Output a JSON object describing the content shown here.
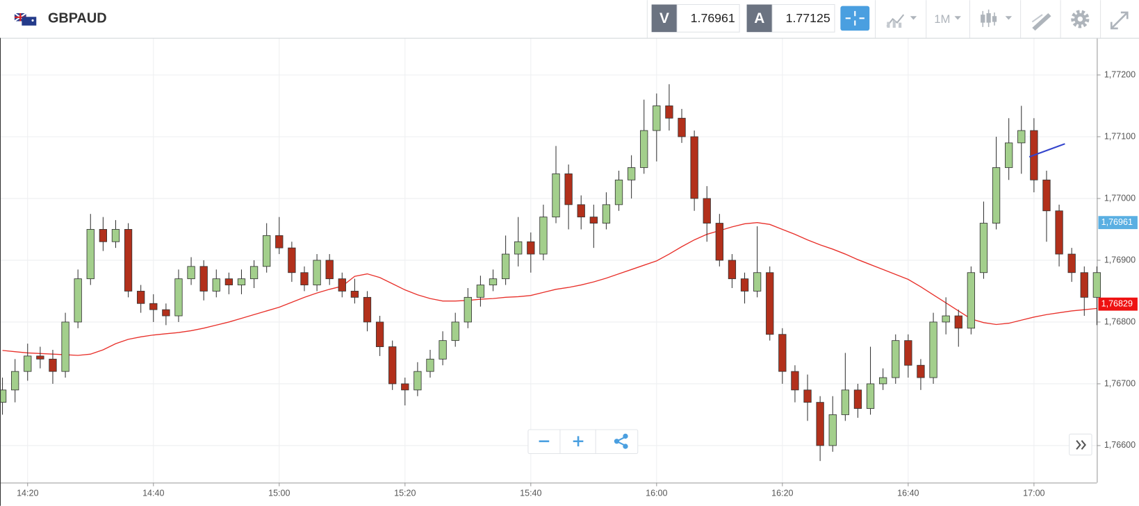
{
  "header": {
    "symbol": "GBPAUD",
    "bid_label": "V",
    "bid": "1.76961",
    "ask_label": "A",
    "ask": "1.77125",
    "timeframe": "1M"
  },
  "chart_data": {
    "type": "candlestick",
    "up_color": "#a3cf8c",
    "down_color": "#b2301b",
    "x": [
      "14:16",
      "14:18",
      "14:20",
      "14:22",
      "14:24",
      "14:26",
      "14:28",
      "14:30",
      "14:32",
      "14:34",
      "14:36",
      "14:38",
      "14:40",
      "14:42",
      "14:44",
      "14:46",
      "14:48",
      "14:50",
      "14:52",
      "14:54",
      "14:56",
      "14:58",
      "15:00",
      "15:02",
      "15:04",
      "15:06",
      "15:08",
      "15:10",
      "15:12",
      "15:14",
      "15:16",
      "15:18",
      "15:20",
      "15:22",
      "15:24",
      "15:26",
      "15:28",
      "15:30",
      "15:32",
      "15:34",
      "15:36",
      "15:38",
      "15:40",
      "15:42",
      "15:44",
      "15:46",
      "15:48",
      "15:50",
      "15:52",
      "15:54",
      "15:56",
      "15:58",
      "16:00",
      "16:02",
      "16:04",
      "16:06",
      "16:08",
      "16:10",
      "16:12",
      "16:14",
      "16:16",
      "16:18",
      "16:20",
      "16:22",
      "16:24",
      "16:26",
      "16:28",
      "16:30",
      "16:32",
      "16:34",
      "16:36",
      "16:38",
      "16:40",
      "16:42",
      "16:44",
      "16:46",
      "16:48",
      "16:50",
      "16:52",
      "16:54",
      "16:56",
      "16:58",
      "17:00",
      "17:02",
      "17:04",
      "17:06",
      "17:08",
      "17:10"
    ],
    "open": [
      1.7667,
      1.7669,
      1.7672,
      1.76745,
      1.7674,
      1.7672,
      1.768,
      1.7687,
      1.7695,
      1.7693,
      1.7695,
      1.7685,
      1.7683,
      1.7682,
      1.7681,
      1.7687,
      1.7689,
      1.7685,
      1.7687,
      1.7686,
      1.7687,
      1.7689,
      1.7694,
      1.7692,
      1.7688,
      1.7686,
      1.769,
      1.7687,
      1.7685,
      1.7684,
      1.768,
      1.7676,
      1.767,
      1.7669,
      1.7672,
      1.7674,
      1.7677,
      1.768,
      1.7684,
      1.7686,
      1.7687,
      1.7691,
      1.7693,
      1.7691,
      1.7697,
      1.7704,
      1.7699,
      1.7697,
      1.7696,
      1.7699,
      1.7703,
      1.7705,
      1.7711,
      1.7715,
      1.7713,
      1.771,
      1.77,
      1.7696,
      1.769,
      1.7687,
      1.7685,
      1.7688,
      1.7678,
      1.7672,
      1.7669,
      1.7667,
      1.766,
      1.7665,
      1.7669,
      1.7666,
      1.767,
      1.7671,
      1.7677,
      1.7673,
      1.7671,
      1.768,
      1.7681,
      1.7679,
      1.7688,
      1.7696,
      1.7705,
      1.7709,
      1.7711,
      1.7703,
      1.7698,
      1.7691,
      1.7688,
      1.7684
    ],
    "high": [
      1.7671,
      1.7674,
      1.76765,
      1.7676,
      1.76755,
      1.76815,
      1.76885,
      1.76975,
      1.7697,
      1.76965,
      1.7696,
      1.7686,
      1.76845,
      1.7683,
      1.76885,
      1.76905,
      1.769,
      1.76885,
      1.7688,
      1.76885,
      1.769,
      1.7696,
      1.7697,
      1.7693,
      1.7689,
      1.7691,
      1.7691,
      1.7688,
      1.7687,
      1.7685,
      1.7681,
      1.7677,
      1.7671,
      1.76735,
      1.76755,
      1.76785,
      1.76815,
      1.76855,
      1.76875,
      1.76885,
      1.7694,
      1.7697,
      1.76945,
      1.7699,
      1.77085,
      1.77055,
      1.77005,
      1.7699,
      1.7701,
      1.77045,
      1.7707,
      1.7716,
      1.7717,
      1.77185,
      1.77145,
      1.7711,
      1.7702,
      1.76975,
      1.7691,
      1.7688,
      1.76955,
      1.7689,
      1.7679,
      1.7673,
      1.76715,
      1.7668,
      1.7668,
      1.7675,
      1.767,
      1.7676,
      1.76725,
      1.7678,
      1.7678,
      1.7674,
      1.76815,
      1.7684,
      1.7682,
      1.7689,
      1.76995,
      1.771,
      1.7713,
      1.7715,
      1.7713,
      1.77045,
      1.7699,
      1.7692,
      1.7689,
      1.7689
    ],
    "low": [
      1.7665,
      1.7667,
      1.76705,
      1.76725,
      1.767,
      1.7671,
      1.7679,
      1.7686,
      1.76915,
      1.7692,
      1.7684,
      1.76815,
      1.768,
      1.76795,
      1.768,
      1.7686,
      1.76835,
      1.7684,
      1.76845,
      1.76845,
      1.76855,
      1.7688,
      1.7691,
      1.76865,
      1.7685,
      1.7685,
      1.7686,
      1.7684,
      1.7683,
      1.76785,
      1.76745,
      1.7669,
      1.76665,
      1.7668,
      1.7671,
      1.7673,
      1.7676,
      1.7679,
      1.76825,
      1.7685,
      1.7686,
      1.7689,
      1.7688,
      1.769,
      1.7696,
      1.7695,
      1.7695,
      1.7692,
      1.7695,
      1.7698,
      1.77,
      1.7704,
      1.7706,
      1.7711,
      1.7709,
      1.7698,
      1.7693,
      1.7689,
      1.76855,
      1.7683,
      1.7684,
      1.7677,
      1.767,
      1.7667,
      1.7664,
      1.76575,
      1.7659,
      1.7664,
      1.76645,
      1.7665,
      1.7669,
      1.767,
      1.7671,
      1.7669,
      1.767,
      1.7678,
      1.7676,
      1.7678,
      1.7687,
      1.7695,
      1.7703,
      1.7704,
      1.7701,
      1.7693,
      1.7689,
      1.76865,
      1.7681,
      1.76795
    ],
    "close": [
      1.7669,
      1.7672,
      1.76745,
      1.7674,
      1.7672,
      1.768,
      1.7687,
      1.7695,
      1.7693,
      1.7695,
      1.7685,
      1.7683,
      1.7682,
      1.7681,
      1.7687,
      1.7689,
      1.7685,
      1.7687,
      1.7686,
      1.7687,
      1.7689,
      1.7694,
      1.7692,
      1.7688,
      1.7686,
      1.769,
      1.7687,
      1.7685,
      1.7684,
      1.768,
      1.7676,
      1.767,
      1.7669,
      1.7672,
      1.7674,
      1.7677,
      1.768,
      1.7684,
      1.7686,
      1.7687,
      1.7691,
      1.7693,
      1.7691,
      1.7697,
      1.7704,
      1.7699,
      1.7697,
      1.7696,
      1.7699,
      1.7703,
      1.7705,
      1.7711,
      1.7715,
      1.7713,
      1.771,
      1.77,
      1.7696,
      1.769,
      1.7687,
      1.7685,
      1.7688,
      1.7678,
      1.7672,
      1.7669,
      1.7667,
      1.766,
      1.7665,
      1.7669,
      1.7666,
      1.767,
      1.7671,
      1.7677,
      1.7673,
      1.7671,
      1.768,
      1.7681,
      1.7679,
      1.7688,
      1.7696,
      1.7705,
      1.7709,
      1.7711,
      1.7703,
      1.7698,
      1.7691,
      1.7688,
      1.7684,
      1.7688
    ],
    "ma": {
      "color": "#e8302a",
      "values": [
        1.76754,
        1.76752,
        1.7675,
        1.76749,
        1.76748,
        1.76747,
        1.76746,
        1.76748,
        1.76755,
        1.76765,
        1.76772,
        1.76776,
        1.76779,
        1.76781,
        1.76783,
        1.76786,
        1.7679,
        1.76795,
        1.768,
        1.76806,
        1.76812,
        1.76818,
        1.76824,
        1.76832,
        1.7684,
        1.76847,
        1.76853,
        1.76858,
        1.76874,
        1.76878,
        1.76872,
        1.76862,
        1.76852,
        1.76844,
        1.76838,
        1.76834,
        1.76834,
        1.76835,
        1.76837,
        1.76838,
        1.7684,
        1.76841,
        1.76843,
        1.76848,
        1.76853,
        1.76856,
        1.7686,
        1.76865,
        1.76871,
        1.76878,
        1.76885,
        1.76892,
        1.76899,
        1.7691,
        1.76922,
        1.76933,
        1.76942,
        1.76948,
        1.76954,
        1.76959,
        1.76961,
        1.76958,
        1.7695,
        1.76942,
        1.76933,
        1.76925,
        1.76918,
        1.7691,
        1.76901,
        1.76893,
        1.76885,
        1.76877,
        1.76869,
        1.76857,
        1.76844,
        1.76831,
        1.76818,
        1.76805,
        1.76799,
        1.76796,
        1.76798,
        1.76803,
        1.76808,
        1.76812,
        1.76815,
        1.76818,
        1.7682,
        1.76822
      ]
    },
    "xlim": [
      "14:16",
      "17:10"
    ],
    "xticks": [
      "14:20",
      "14:40",
      "15:00",
      "15:20",
      "15:40",
      "16:00",
      "16:20",
      "16:40",
      "17:00"
    ],
    "ylim": [
      1.7654,
      1.7726
    ],
    "yticks": [
      {
        "value": 1.766,
        "label": "1,76600"
      },
      {
        "value": 1.767,
        "label": "1,76700"
      },
      {
        "value": 1.768,
        "label": "1,76800"
      },
      {
        "value": 1.769,
        "label": "1,76900"
      },
      {
        "value": 1.77,
        "label": "1,77000"
      },
      {
        "value": 1.771,
        "label": "1,77100"
      },
      {
        "value": 1.772,
        "label": "1,77200"
      }
    ],
    "grid": true,
    "markers": [
      {
        "value": 1.76961,
        "label": "1,76961",
        "color": "#5aafe2"
      },
      {
        "value": 1.76829,
        "label": "1,76829",
        "color": "#ee1111"
      }
    ]
  }
}
